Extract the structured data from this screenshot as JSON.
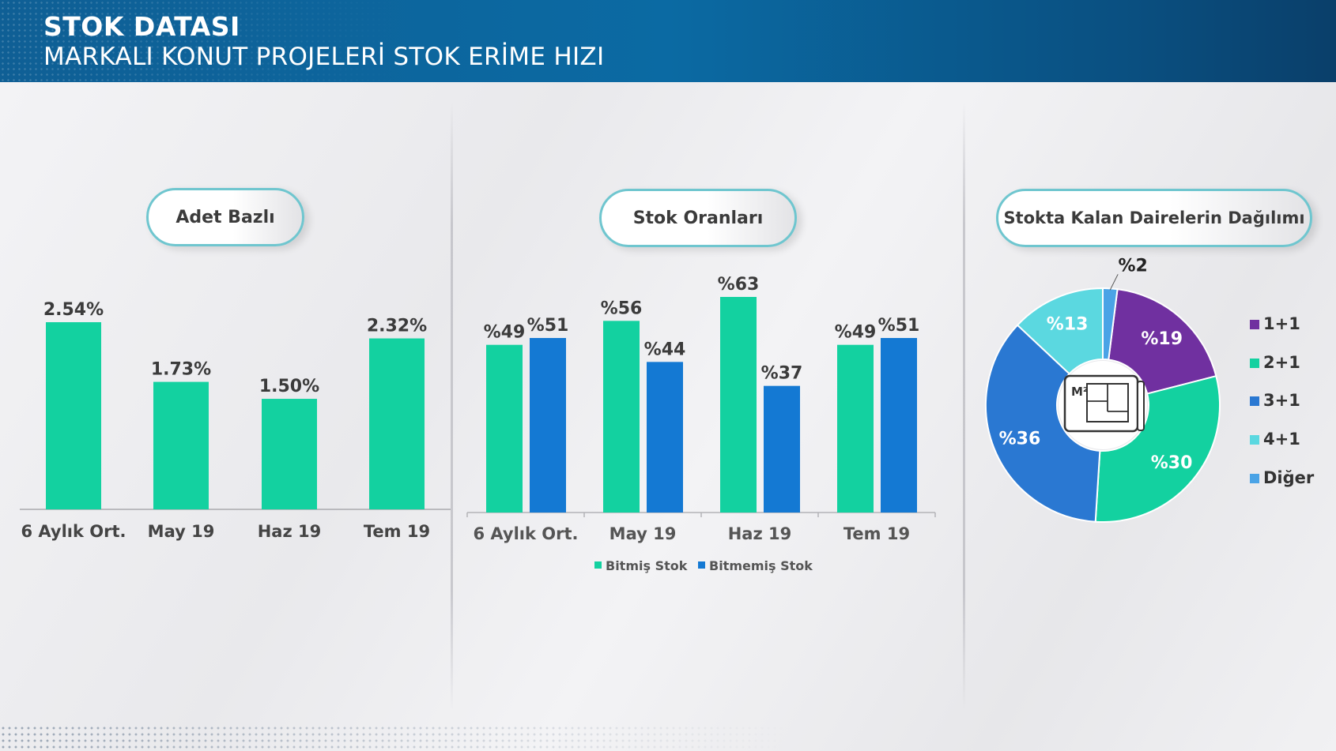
{
  "header": {
    "title": "STOK DATASI",
    "subtitle": "MARKALI KONUT PROJELERİ STOK ERİME HIZI"
  },
  "colors": {
    "green": "#13d1a0",
    "blue": "#1479d3",
    "purple": "#7030a0",
    "dark_blue": "#2a78d2",
    "cyan": "#5bd8e0",
    "light_blue": "#4aa3e6",
    "header_bg": "#0b6aa3",
    "pill_border": "#6fc6cf"
  },
  "panels": {
    "adet_title": "Adet Bazlı",
    "stok_title": "Stok Oranları",
    "dagilim_title": "Stokta Kalan Dairelerin Dağılımı"
  },
  "chart_data": [
    {
      "type": "bar",
      "title": "Adet Bazlı",
      "categories": [
        "6 Aylık Ort.",
        "May 19",
        "Haz 19",
        "Tem 19"
      ],
      "values": [
        2.54,
        1.73,
        1.5,
        2.32
      ],
      "data_labels": [
        "2.54%",
        "1.73%",
        "1.50%",
        "2.32%"
      ],
      "ylim": [
        0,
        2.54
      ],
      "grid": false,
      "color": "#13d1a0"
    },
    {
      "type": "bar",
      "title": "Stok Oranları",
      "categories": [
        "6 Aylık Ort.",
        "May 19",
        "Haz 19",
        "Tem 19"
      ],
      "series": [
        {
          "name": "Bitmiş Stok",
          "values": [
            49,
            56,
            63,
            49
          ],
          "labels": [
            "%49",
            "%56",
            "%63",
            "%49"
          ],
          "color": "#13d1a0"
        },
        {
          "name": "Bitmemiş Stok",
          "values": [
            51,
            44,
            37,
            51
          ],
          "labels": [
            "%51",
            "%44",
            "%37",
            "%51"
          ],
          "color": "#1479d3"
        }
      ],
      "ylim": [
        0,
        63
      ],
      "legend": "bottom",
      "grid": false
    },
    {
      "type": "pie",
      "title": "Stokta Kalan Dairelerin Dağılımı",
      "donut": true,
      "center_icon": "floor-plan-icon",
      "center_icon_text": "M²",
      "slices": [
        {
          "name": "1+1",
          "value": 19,
          "label": "%19",
          "color": "#7030a0"
        },
        {
          "name": "2+1",
          "value": 30,
          "label": "%30",
          "color": "#13d1a0"
        },
        {
          "name": "3+1",
          "value": 36,
          "label": "%36",
          "color": "#2a78d2"
        },
        {
          "name": "4+1",
          "value": 13,
          "label": "%13",
          "color": "#5bd8e0"
        },
        {
          "name": "Diğer",
          "value": 2,
          "label": "%2",
          "color": "#4aa3e6"
        }
      ],
      "legend": "right"
    }
  ]
}
